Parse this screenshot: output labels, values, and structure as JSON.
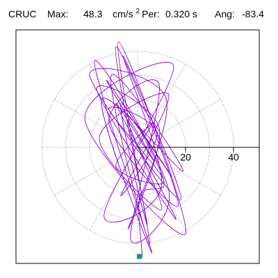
{
  "header": {
    "station": "CRUC",
    "max_label": "Max:",
    "max_value": "48.3",
    "max_unit": "cm/s",
    "max_unit_sup": "2",
    "per_label": "Per:",
    "per_value": "0.320 s",
    "ang_label": "Ang:",
    "ang_value": "-83.4"
  },
  "chart_data": {
    "type": "line",
    "title": "",
    "xlabel": "",
    "ylabel": "",
    "polar_rings": [
      10,
      20,
      30,
      40
    ],
    "ring_labels": [
      "20",
      "40"
    ],
    "spoke_angles_deg": [
      0,
      30,
      60,
      90,
      120,
      150,
      180,
      210,
      240,
      270,
      300,
      330
    ],
    "xlim": [
      -50,
      50
    ],
    "ylim": [
      -46,
      47
    ],
    "grid": true,
    "grid_style": "dotted",
    "series": [
      {
        "color": "#8800cc",
        "x": [
          0,
          6,
          -9,
          11,
          -12,
          8,
          -7,
          13,
          -16,
          10,
          -5,
          14,
          -13,
          7,
          -9,
          16,
          -17,
          9,
          -4,
          12,
          -20,
          18,
          -6,
          10,
          -14,
          15,
          -22,
          20,
          -8,
          5,
          -11,
          19,
          -15,
          6,
          -18,
          13,
          -3,
          9,
          -12,
          17,
          -9,
          4,
          -7,
          11,
          1,
          2
        ],
        "y": [
          0,
          10,
          -8,
          -14,
          16,
          6,
          -20,
          22,
          4,
          -26,
          14,
          -12,
          28,
          -6,
          18,
          -30,
          24,
          8,
          -34,
          20,
          30,
          -22,
          38,
          -16,
          -28,
          34,
          12,
          -36,
          44,
          -40,
          30,
          -10,
          20,
          -44,
          36,
          -18,
          -38,
          26,
          10,
          -24,
          42,
          -32,
          18,
          -14,
          -20,
          -46
        ]
      }
    ],
    "end_marker": {
      "x": 0.7,
      "y": -45.5,
      "color": "#009977"
    }
  }
}
